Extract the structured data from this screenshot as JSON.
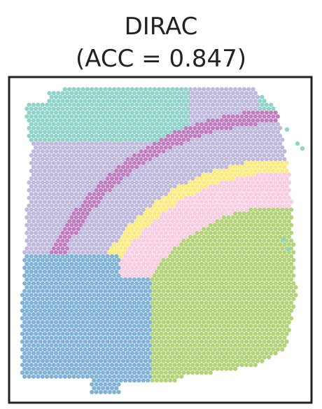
{
  "chart_data": {
    "type": "scatter",
    "title_line1": "DIRAC",
    "title_line2": "(ACC = 0.847)",
    "axes_visible": false,
    "frame": true,
    "grid": false,
    "legend": "none",
    "n_clusters": 7,
    "cluster_colors": [
      "#7fb2d6",
      "#b2d277",
      "#f9cce2",
      "#fbeb7c",
      "#bdb8dc",
      "#be7bbf",
      "#8ed3c7"
    ]
  }
}
